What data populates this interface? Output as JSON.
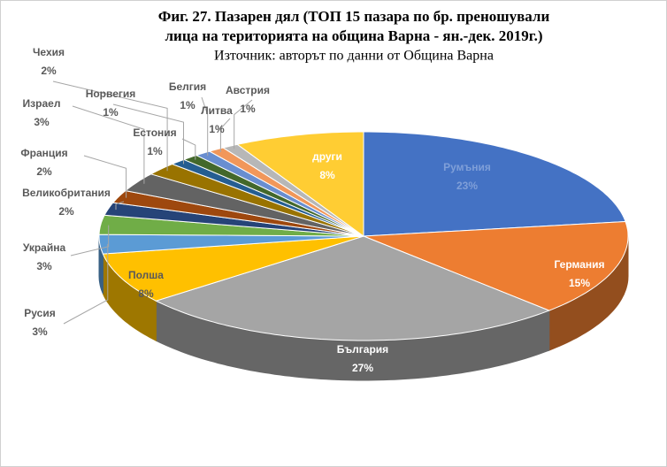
{
  "chart_data": {
    "type": "pie3d",
    "title": [
      "Фиг. 27. Пазарен дял (ТОП 15 пазара по бр. преношували",
      "лица на територията на община Варна - ян.-дек. 2019г.)"
    ],
    "subtitle": "Източник: авторът по данни от Община Варна",
    "categories": [
      "Румъния",
      "Германия",
      "България",
      "Полша",
      "Русия",
      "Украйна",
      "Великобритания",
      "Франция",
      "Израел",
      "Чехия",
      "Норвегия",
      "Естония",
      "Белгия",
      "Литва",
      "Австрия",
      "други"
    ],
    "values": [
      23,
      15,
      27,
      8,
      3,
      3,
      2,
      2,
      3,
      2,
      1,
      1,
      1,
      1,
      1,
      8
    ],
    "value_labels": [
      "23%",
      "15%",
      "27%",
      "8%",
      "3%",
      "3%",
      "2%",
      "2%",
      "3%",
      "2%",
      "1%",
      "1%",
      "1%",
      "1%",
      "1%",
      "8%"
    ],
    "colors": [
      "#4472c4",
      "#ed7d31",
      "#a5a5a5",
      "#ffc000",
      "#5b9bd5",
      "#70ad47",
      "#264478",
      "#9e480e",
      "#636363",
      "#997300",
      "#255e91",
      "#43682b",
      "#698ed0",
      "#f1975a",
      "#b7b7b7",
      "#ffcd33"
    ]
  }
}
